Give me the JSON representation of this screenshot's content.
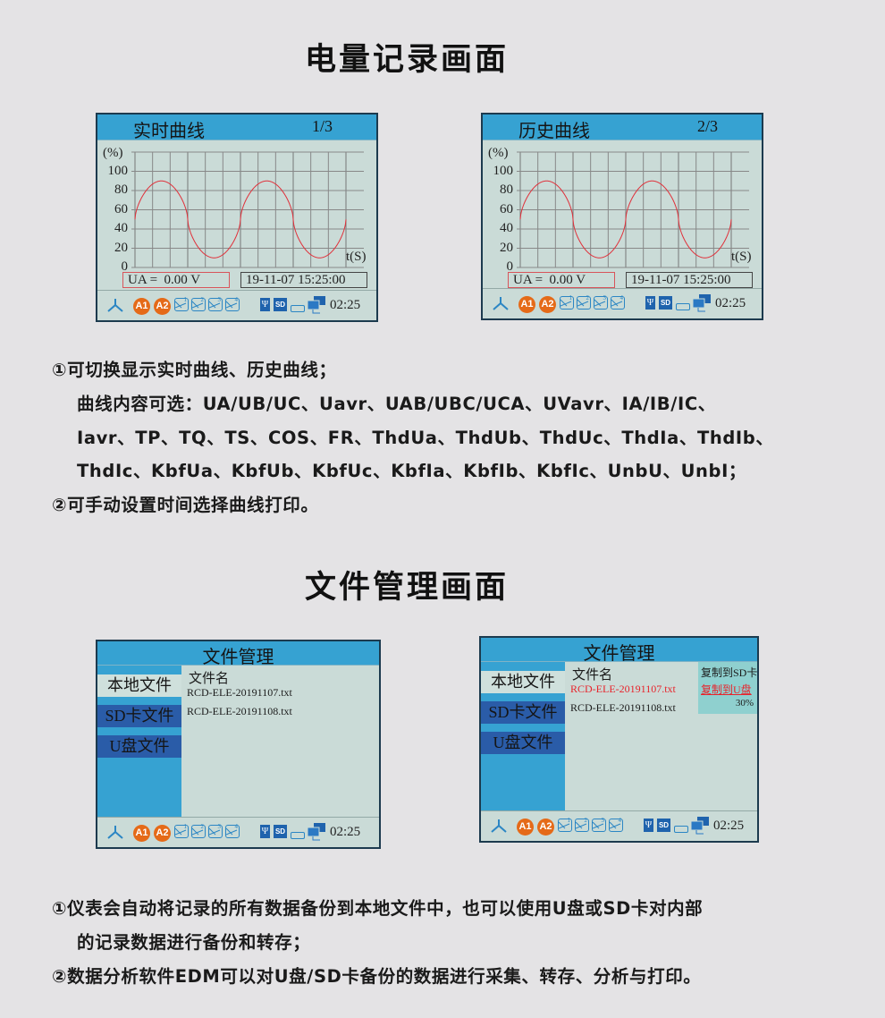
{
  "section1": {
    "title": "电量记录画面",
    "lines": [
      "①可切换显示实时曲线、历史曲线；",
      "曲线内容可选：UA/UB/UC、Uavr、UAB/UBC/UCA、UVavr、IA/IB/IC、",
      "Iavr、TP、TQ、TS、COS、FR、ThdUa、ThdUb、ThdUc、ThdIa、ThdIb、",
      "ThdIc、KbfUa、KbfUb、KbfUc、KbfIa、KbfIb、KbfIc、UnbU、UnbI；",
      "②可手动设置时间选择曲线打印。"
    ]
  },
  "section2": {
    "title": "文件管理画面",
    "lines": [
      "①仪表会自动将记录的所有数据备份到本地文件中，也可以使用U盘或SD卡对内部",
      "的记录数据进行备份和转存；",
      "②数据分析软件EDM可以对U盘/SD卡备份的数据进行采集、转存、分析与打印。"
    ]
  },
  "colors": {
    "title_bar": "#36a2d2",
    "screen_bg": "#cadbd7",
    "curve": "#e0303a",
    "badge": "#e56a18",
    "menu_dark": "#2a5ca8",
    "highlight_red": "#e8232b",
    "popup_bg": "#8fd0cf"
  },
  "status_bar": {
    "icons": [
      "person-icon",
      "alarm-a1-icon",
      "alarm-a2-icon",
      "relay-1-icon",
      "relay-2-icon",
      "relay-3-icon",
      "relay-4-icon",
      "usb-icon",
      "sd-card-icon",
      "serial-port-icon",
      "network-icon"
    ],
    "a1": "A1",
    "a2": "A2",
    "relays": [
      "1",
      "2",
      "3",
      "4"
    ],
    "sd": "SD",
    "usb": "Ψ",
    "time": "02:25"
  },
  "curve_screens": [
    {
      "title": "实时曲线",
      "page": "1/3",
      "y_unit": "(%)",
      "x_unit": "t(S)",
      "reading": "UA =  0.00 V",
      "datetime": "19-11-07 15:25:00"
    },
    {
      "title": "历史曲线",
      "page": "2/3",
      "y_unit": "(%)",
      "x_unit": "t(S)",
      "reading": "UA =  0.00 V",
      "datetime": "19-11-07 15:25:00"
    }
  ],
  "chart_data": {
    "type": "line",
    "ylabel": "(%)",
    "xlabel": "t(S)",
    "yticks": [
      "100",
      "80",
      "60",
      "40",
      "20",
      "0"
    ],
    "ylim": [
      0,
      120
    ],
    "grid": true,
    "series": [
      {
        "waveform": "sine",
        "offset": 50,
        "amplitude": 40,
        "periods": 2
      }
    ]
  },
  "file_screens": [
    {
      "title": "文件管理",
      "tabs": [
        "本地文件",
        "SD卡文件",
        "U盘文件"
      ],
      "header": "文件名",
      "files": [
        "RCD-ELE-20191107.txt",
        "RCD-ELE-20191108.txt"
      ],
      "selected": -1
    },
    {
      "title": "文件管理",
      "tabs": [
        "本地文件",
        "SD卡文件",
        "U盘文件"
      ],
      "header": "文件名",
      "files": [
        "RCD-ELE-20191107.txt",
        "RCD-ELE-20191108.txt"
      ],
      "selected": 0,
      "popup": {
        "items": [
          "复制到SD卡",
          "复制到U盘"
        ],
        "progress": "30%"
      }
    }
  ]
}
